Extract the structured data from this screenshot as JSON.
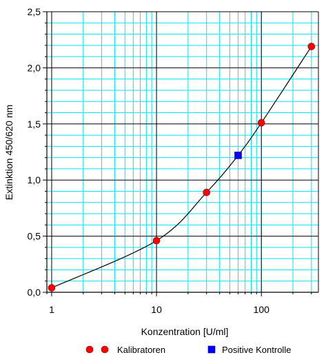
{
  "chart_data": {
    "type": "scatter",
    "xlabel": "Konzentration [U/ml]",
    "ylabel": "Extinktion 450/620 nm",
    "x_scale": "log",
    "xlim": [
      0.9,
      350
    ],
    "ylim": [
      0,
      2.5
    ],
    "x_ticks": [
      1,
      10,
      100
    ],
    "x_tick_labels": [
      "1",
      "10",
      "100"
    ],
    "y_ticks": [
      0,
      0.5,
      1.0,
      1.5,
      2.0,
      2.5
    ],
    "y_tick_labels": [
      "0,0",
      "0,5",
      "1,0",
      "1,5",
      "2,0",
      "2,5"
    ],
    "grid": true,
    "legend_position": "bottom",
    "colors": {
      "minor_grid": "#00e5ee",
      "major_grid": "#000000",
      "kalibratoren": "#ff0000",
      "positive_kontrolle": "#0000ff",
      "curve": "#000000"
    },
    "series": [
      {
        "name": "Kalibratoren",
        "marker": "circle",
        "color": "#ff0000",
        "points": [
          {
            "x": 1,
            "y": 0.04
          },
          {
            "x": 10,
            "y": 0.46
          },
          {
            "x": 30,
            "y": 0.89
          },
          {
            "x": 100,
            "y": 1.51
          },
          {
            "x": 300,
            "y": 2.19
          }
        ]
      },
      {
        "name": "Positive Kontrolle",
        "marker": "square",
        "color": "#0000ff",
        "points": [
          {
            "x": 60,
            "y": 1.22
          }
        ]
      }
    ]
  }
}
